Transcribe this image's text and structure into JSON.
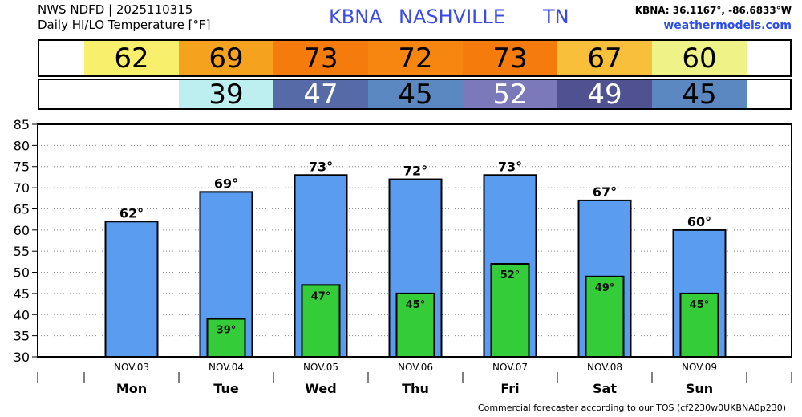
{
  "header": {
    "source": "NWS NDFD | 2025110315",
    "product": "Daily HI/LO Temperature [°F]",
    "station": "KBNA",
    "city": "NASHVILLE",
    "state": "TN",
    "coordinates": "KBNA: 36.1167°, -86.6833°W",
    "site": "weathermodels.com"
  },
  "summary_table": {
    "high_colors": [
      "#f8ef6c",
      "#f5a21e",
      "#f57b0c",
      "#f6860f",
      "#f57b0c",
      "#f8c03a",
      "#eef287"
    ],
    "high_text_colors": [
      "#000000",
      "#000000",
      "#000000",
      "#000000",
      "#000000",
      "#000000",
      "#000000"
    ],
    "low_colors": [
      "#ffffff",
      "#bdeff1",
      "#566aa8",
      "#5b88c0",
      "#7b79ba",
      "#4f5190",
      "#5b88c0"
    ],
    "low_text_colors": [
      "#000000",
      "#000000",
      "#ffffff",
      "#000000",
      "#ffffff",
      "#ffffff",
      "#000000"
    ]
  },
  "chart_data": {
    "type": "bar",
    "categories": [
      "Mon",
      "Tue",
      "Wed",
      "Thu",
      "Fri",
      "Sat",
      "Sun"
    ],
    "dates": [
      "NOV.03",
      "NOV.04",
      "NOV.05",
      "NOV.06",
      "NOV.07",
      "NOV.08",
      "NOV.09"
    ],
    "series": [
      {
        "values": [
          62,
          69,
          73,
          72,
          73,
          67,
          60
        ],
        "data_labels": [
          "62°",
          "69°",
          "73°",
          "72°",
          "73°",
          "67°",
          "60°"
        ],
        "color": "#5a9cf0"
      },
      {
        "values": [
          null,
          39,
          47,
          45,
          52,
          49,
          45
        ],
        "data_labels": [
          null,
          "39°",
          "47°",
          "45°",
          "52°",
          "49°",
          "45°"
        ],
        "color": "#34cc38"
      }
    ],
    "yticks": [
      85,
      80,
      75,
      70,
      65,
      60,
      55,
      50,
      45,
      40,
      35,
      30
    ],
    "ylim": [
      30,
      85
    ],
    "grid": true
  },
  "footer": "Commercial forecaster according to our TOS (cf2230w0UKBNA0p230)"
}
